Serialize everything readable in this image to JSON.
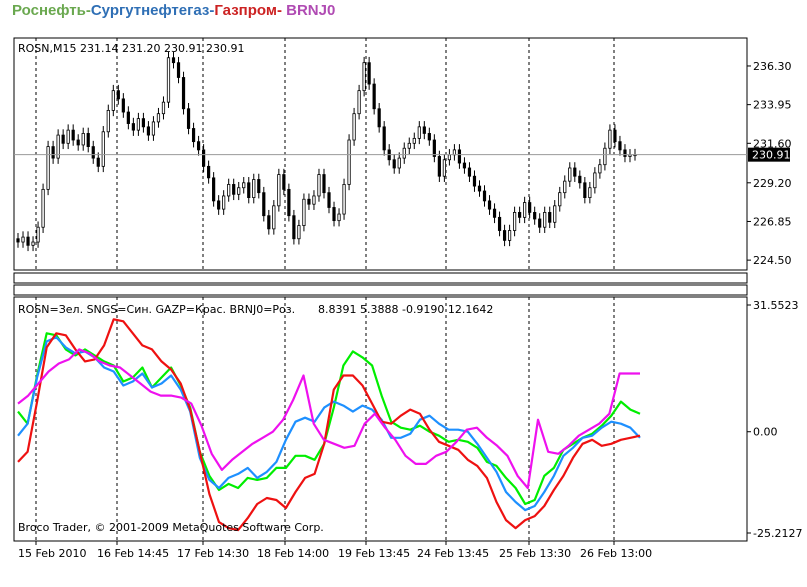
{
  "header": {
    "parts": [
      {
        "text": "Роснефть",
        "color": "#6aa84f"
      },
      {
        "text": "-",
        "color": "#6aa84f"
      },
      {
        "text": "Сургутнефтегаз",
        "color": "#2f6fb5"
      },
      {
        "text": "-",
        "color": "#2f6fb5"
      },
      {
        "text": "Газпром",
        "color": "#cc2222"
      },
      {
        "text": "- ",
        "color": "#cc2222"
      },
      {
        "text": "BRNJ0",
        "color": "#b04bb3"
      }
    ]
  },
  "chart_data": [
    {
      "type": "candlestick",
      "title": "ROSN,M15  231.14 231.20 230.91 230.91",
      "current_price_label": "230.91",
      "current_price": 230.91,
      "ylim": [
        223.9,
        238.0
      ],
      "y_ticks": [
        "236.30",
        "233.95",
        "231.60",
        "229.20",
        "226.85",
        "224.50"
      ],
      "y_tick_values": [
        236.3,
        233.95,
        231.6,
        229.2,
        226.85,
        224.5
      ],
      "grid": "dashed vertical session separators",
      "close_series": [
        225.6,
        225.9,
        225.4,
        225.6,
        226.5,
        228.8,
        231.4,
        230.7,
        232.1,
        231.6,
        232.4,
        231.8,
        231.5,
        232.2,
        231.4,
        230.7,
        230.2,
        232.3,
        233.6,
        234.8,
        234.3,
        233.5,
        232.8,
        232.4,
        233.1,
        232.6,
        232.1,
        232.9,
        233.4,
        234.1,
        236.8,
        236.5,
        235.6,
        233.7,
        232.5,
        231.7,
        231.2,
        230.2,
        229.5,
        228.1,
        227.6,
        228.4,
        229.1,
        228.5,
        228.9,
        229.2,
        228.3,
        229.4,
        228.6,
        227.2,
        226.4,
        227.8,
        229.7,
        228.8,
        227.2,
        225.8,
        226.6,
        228.2,
        227.9,
        228.4,
        229.7,
        228.6,
        227.7,
        226.9,
        227.3,
        229.1,
        231.8,
        233.4,
        234.8,
        236.5,
        235.2,
        233.7,
        232.6,
        231.2,
        230.6,
        230.1,
        230.7,
        231.3,
        231.6,
        231.9,
        232.6,
        232.2,
        231.8,
        230.8,
        229.6,
        230.6,
        230.9,
        231.2,
        230.4,
        230.1,
        229.6,
        229.0,
        228.7,
        228.1,
        227.6,
        227.1,
        226.3,
        225.7,
        226.3,
        227.4,
        227.1,
        228.0,
        227.4,
        227.0,
        226.5,
        227.4,
        226.8,
        227.8,
        228.6,
        229.3,
        230.1,
        229.6,
        229.2,
        228.3,
        228.9,
        229.8,
        230.3,
        231.3,
        232.4,
        231.7,
        231.2,
        230.8,
        230.9,
        230.91
      ]
    },
    {
      "type": "line",
      "title": "ROSN=Зел. SNGS=Син. GAZP=Крас. BRNJ0=Роз.",
      "readout": "8.8391 5.3888 -0.9190 12.1642",
      "ylim": [
        -25.2127,
        31.5523
      ],
      "y_ticks": [
        "31.5523",
        "0.00",
        "-25.2127"
      ],
      "y_tick_values": [
        31.5523,
        0.0,
        -25.2127
      ],
      "x_tick_labels": [
        "15 Feb 2010",
        "16 Feb 14:45",
        "17 Feb 14:30",
        "18 Feb 14:00",
        "19 Feb 13:45",
        "24 Feb 13:45",
        "25 Feb 13:30",
        "26 Feb 13:00"
      ],
      "footer": "Broco Trader, © 2001-2009 MetaQuotes Software Corp.",
      "series": [
        {
          "color": "#00ee00",
          "values": [
            5.0,
            2.0,
            14.0,
            24.5,
            24.0,
            20.5,
            19.0,
            20.5,
            19.0,
            17.5,
            16.5,
            12.5,
            13.5,
            16.0,
            11.0,
            13.5,
            16.0,
            11.5,
            6.0,
            -5.0,
            -11.0,
            -14.5,
            -13.0,
            -14.0,
            -11.5,
            -12.0,
            -11.5,
            -9.0,
            -9.0,
            -6.0,
            -6.0,
            -7.0,
            -3.0,
            6.0,
            16.5,
            20.0,
            18.5,
            16.5,
            9.0,
            2.5,
            1.0,
            0.5,
            1.5,
            0.0,
            -1.0,
            -2.5,
            -2.0,
            -2.5,
            -4.0,
            -7.5,
            -8.5,
            -11.5,
            -14.0,
            -18.0,
            -17.0,
            -11.0,
            -9.0,
            -4.5,
            -3.0,
            -1.5,
            -0.5,
            1.5,
            4.0,
            7.5,
            5.5,
            4.5
          ]
        },
        {
          "color": "#1e90ff",
          "values": [
            -1.0,
            2.0,
            13.5,
            22.5,
            23.5,
            21.0,
            19.5,
            20.0,
            18.5,
            16.0,
            15.0,
            11.5,
            12.5,
            14.5,
            11.0,
            12.0,
            14.0,
            10.5,
            5.0,
            -6.5,
            -12.0,
            -14.0,
            -11.5,
            -10.5,
            -9.0,
            -11.5,
            -10.0,
            -7.5,
            -2.0,
            2.5,
            3.5,
            2.5,
            6.0,
            7.5,
            6.5,
            5.0,
            6.5,
            5.5,
            3.0,
            -1.5,
            -1.5,
            -0.5,
            3.0,
            4.0,
            2.0,
            0.5,
            0.5,
            0.0,
            -3.0,
            -6.5,
            -10.0,
            -15.0,
            -17.5,
            -19.5,
            -18.5,
            -15.0,
            -11.0,
            -6.0,
            -4.0,
            -1.5,
            -1.0,
            1.0,
            2.5,
            2.0,
            1.0,
            -1.5
          ]
        },
        {
          "color": "#ee1111",
          "values": [
            -7.5,
            -5.0,
            7.5,
            21.0,
            24.5,
            24.0,
            20.5,
            17.5,
            18.0,
            21.5,
            28.0,
            27.5,
            24.5,
            21.5,
            20.5,
            17.5,
            15.5,
            12.0,
            5.5,
            -5.0,
            -15.5,
            -22.5,
            -24.0,
            -24.5,
            -21.5,
            -18.0,
            -16.5,
            -17.0,
            -19.0,
            -15.0,
            -11.5,
            -10.5,
            -3.0,
            10.5,
            14.0,
            14.0,
            11.5,
            7.0,
            2.5,
            2.0,
            4.0,
            5.5,
            4.5,
            0.5,
            -2.5,
            -3.5,
            -4.5,
            -7.0,
            -8.5,
            -11.5,
            -17.5,
            -22.0,
            -24.0,
            -22.0,
            -21.0,
            -18.5,
            -14.5,
            -11.0,
            -6.5,
            -3.0,
            -2.0,
            -3.5,
            -3.0,
            -2.0,
            -1.5,
            -1.0
          ]
        },
        {
          "color": "#ee11ee",
          "values": [
            7.0,
            9.0,
            12.0,
            15.0,
            17.0,
            18.0,
            20.5,
            19.5,
            17.5,
            16.5,
            16.0,
            14.0,
            12.0,
            10.0,
            9.0,
            9.0,
            8.5,
            7.0,
            1.5,
            -5.5,
            -9.5,
            -7.0,
            -5.0,
            -3.0,
            -1.5,
            0.0,
            3.0,
            8.0,
            14.0,
            2.0,
            -2.0,
            -3.0,
            -4.0,
            -3.5,
            2.0,
            4.5,
            1.0,
            -2.0,
            -6.0,
            -8.0,
            -8.0,
            -6.0,
            -5.0,
            -2.5,
            0.5,
            1.0,
            -1.5,
            -3.5,
            -6.0,
            -11.0,
            -14.0,
            3.0,
            -5.0,
            -5.5,
            -3.5,
            -1.0,
            0.5,
            2.0,
            4.5,
            14.5,
            14.5,
            14.5
          ]
        }
      ]
    }
  ]
}
